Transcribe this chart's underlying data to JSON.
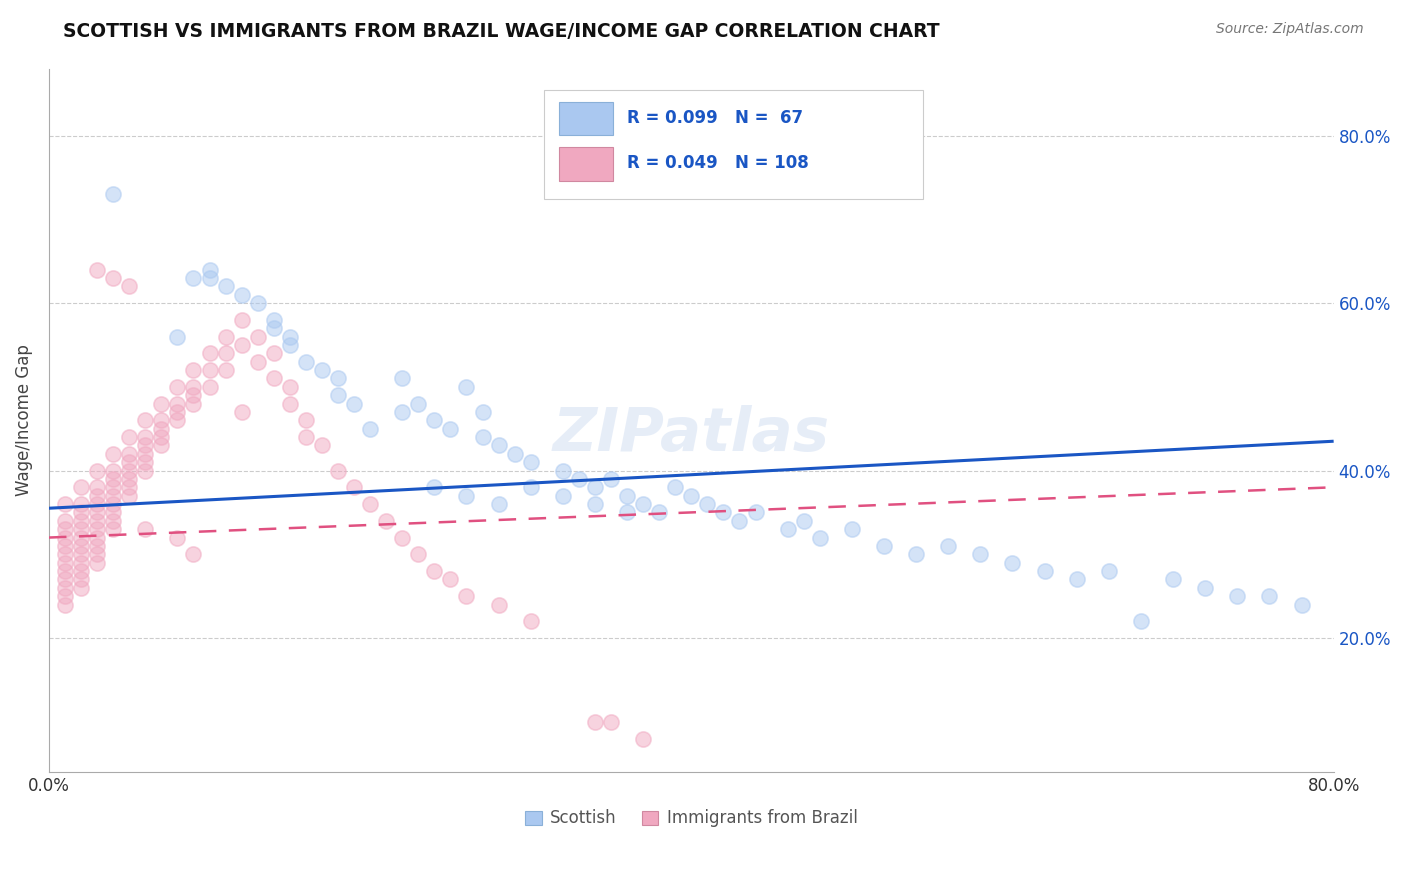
{
  "title": "SCOTTISH VS IMMIGRANTS FROM BRAZIL WAGE/INCOME GAP CORRELATION CHART",
  "source": "Source: ZipAtlas.com",
  "ylabel": "Wage/Income Gap",
  "watermark": "ZIPatlas",
  "legend_label1": "Scottish",
  "legend_label2": "Immigrants from Brazil",
  "color_scottish": "#aac8f0",
  "color_brazil": "#f0a8c0",
  "color_line_scottish": "#1a56c4",
  "color_line_brazil": "#e05080",
  "yticks": [
    0.2,
    0.4,
    0.6,
    0.8
  ],
  "ytick_labels": [
    "20.0%",
    "40.0%",
    "60.0%",
    "80.0%"
  ],
  "xmin": 0.0,
  "xmax": 0.8,
  "ymin": 0.04,
  "ymax": 0.88,
  "scot_line_x0": 0.0,
  "scot_line_y0": 0.355,
  "scot_line_x1": 0.8,
  "scot_line_y1": 0.435,
  "braz_line_x0": 0.0,
  "braz_line_y0": 0.32,
  "braz_line_x1": 0.8,
  "braz_line_y1": 0.38,
  "scottish_x": [
    0.04,
    0.08,
    0.09,
    0.1,
    0.1,
    0.11,
    0.12,
    0.13,
    0.14,
    0.14,
    0.15,
    0.15,
    0.16,
    0.17,
    0.18,
    0.18,
    0.19,
    0.2,
    0.22,
    0.22,
    0.23,
    0.24,
    0.25,
    0.26,
    0.27,
    0.27,
    0.28,
    0.29,
    0.3,
    0.32,
    0.33,
    0.34,
    0.35,
    0.36,
    0.37,
    0.38,
    0.39,
    0.4,
    0.41,
    0.42,
    0.43,
    0.44,
    0.46,
    0.47,
    0.48,
    0.5,
    0.52,
    0.54,
    0.56,
    0.58,
    0.6,
    0.62,
    0.64,
    0.66,
    0.68,
    0.7,
    0.72,
    0.74,
    0.76,
    0.78,
    0.24,
    0.26,
    0.28,
    0.3,
    0.32,
    0.34,
    0.36
  ],
  "scottish_y": [
    0.73,
    0.56,
    0.63,
    0.64,
    0.63,
    0.62,
    0.61,
    0.6,
    0.58,
    0.57,
    0.56,
    0.55,
    0.53,
    0.52,
    0.51,
    0.49,
    0.48,
    0.45,
    0.51,
    0.47,
    0.48,
    0.46,
    0.45,
    0.5,
    0.47,
    0.44,
    0.43,
    0.42,
    0.41,
    0.4,
    0.39,
    0.38,
    0.39,
    0.37,
    0.36,
    0.35,
    0.38,
    0.37,
    0.36,
    0.35,
    0.34,
    0.35,
    0.33,
    0.34,
    0.32,
    0.33,
    0.31,
    0.3,
    0.31,
    0.3,
    0.29,
    0.28,
    0.27,
    0.28,
    0.22,
    0.27,
    0.26,
    0.25,
    0.25,
    0.24,
    0.38,
    0.37,
    0.36,
    0.38,
    0.37,
    0.36,
    0.35
  ],
  "brazil_x": [
    0.01,
    0.01,
    0.01,
    0.01,
    0.01,
    0.01,
    0.01,
    0.01,
    0.01,
    0.01,
    0.01,
    0.01,
    0.02,
    0.02,
    0.02,
    0.02,
    0.02,
    0.02,
    0.02,
    0.02,
    0.02,
    0.02,
    0.02,
    0.02,
    0.03,
    0.03,
    0.03,
    0.03,
    0.03,
    0.03,
    0.03,
    0.03,
    0.03,
    0.03,
    0.03,
    0.04,
    0.04,
    0.04,
    0.04,
    0.04,
    0.04,
    0.04,
    0.04,
    0.04,
    0.05,
    0.05,
    0.05,
    0.05,
    0.05,
    0.05,
    0.05,
    0.06,
    0.06,
    0.06,
    0.06,
    0.06,
    0.06,
    0.07,
    0.07,
    0.07,
    0.07,
    0.07,
    0.08,
    0.08,
    0.08,
    0.08,
    0.09,
    0.09,
    0.09,
    0.09,
    0.1,
    0.1,
    0.1,
    0.11,
    0.11,
    0.11,
    0.12,
    0.12,
    0.13,
    0.13,
    0.14,
    0.14,
    0.15,
    0.15,
    0.16,
    0.16,
    0.17,
    0.18,
    0.19,
    0.2,
    0.21,
    0.22,
    0.23,
    0.24,
    0.25,
    0.26,
    0.28,
    0.3,
    0.34,
    0.35,
    0.37,
    0.12,
    0.09,
    0.08,
    0.06,
    0.05,
    0.04,
    0.03
  ],
  "brazil_y": [
    0.36,
    0.34,
    0.33,
    0.32,
    0.31,
    0.3,
    0.29,
    0.28,
    0.27,
    0.26,
    0.25,
    0.24,
    0.38,
    0.36,
    0.35,
    0.34,
    0.33,
    0.32,
    0.31,
    0.3,
    0.29,
    0.28,
    0.27,
    0.26,
    0.4,
    0.38,
    0.37,
    0.36,
    0.35,
    0.34,
    0.33,
    0.32,
    0.31,
    0.3,
    0.29,
    0.42,
    0.4,
    0.39,
    0.38,
    0.37,
    0.36,
    0.35,
    0.34,
    0.33,
    0.44,
    0.42,
    0.41,
    0.4,
    0.39,
    0.38,
    0.37,
    0.46,
    0.44,
    0.43,
    0.42,
    0.41,
    0.4,
    0.48,
    0.46,
    0.45,
    0.44,
    0.43,
    0.5,
    0.48,
    0.47,
    0.46,
    0.52,
    0.5,
    0.49,
    0.48,
    0.54,
    0.52,
    0.5,
    0.56,
    0.54,
    0.52,
    0.58,
    0.55,
    0.56,
    0.53,
    0.54,
    0.51,
    0.5,
    0.48,
    0.46,
    0.44,
    0.43,
    0.4,
    0.38,
    0.36,
    0.34,
    0.32,
    0.3,
    0.28,
    0.27,
    0.25,
    0.24,
    0.22,
    0.1,
    0.1,
    0.08,
    0.47,
    0.3,
    0.32,
    0.33,
    0.62,
    0.63,
    0.64
  ]
}
